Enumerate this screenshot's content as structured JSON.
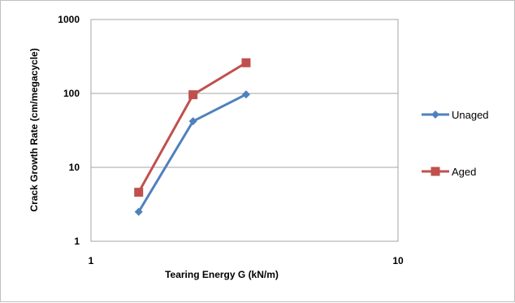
{
  "chart_data": {
    "type": "line",
    "xscale": "log",
    "yscale": "log",
    "xlim": [
      1,
      10
    ],
    "ylim": [
      1,
      1000
    ],
    "xticks": [
      "1",
      "10"
    ],
    "yticks": [
      "1",
      "10",
      "100",
      "1000"
    ],
    "xlabel": "Tearing Energy G (kN/m)",
    "ylabel": "Crack Growth Rate (cm/megacycle)",
    "grid": "horizontal",
    "legend_position": "right",
    "series": [
      {
        "name": "Unaged",
        "color": "#4f81bd",
        "marker": "diamond",
        "points": [
          {
            "x": 1.43,
            "y": 2.5
          },
          {
            "x": 2.15,
            "y": 42
          },
          {
            "x": 3.2,
            "y": 97
          }
        ]
      },
      {
        "name": "Aged",
        "color": "#c0504d",
        "marker": "square",
        "points": [
          {
            "x": 1.43,
            "y": 4.6
          },
          {
            "x": 2.15,
            "y": 96
          },
          {
            "x": 3.2,
            "y": 260
          }
        ]
      }
    ]
  }
}
